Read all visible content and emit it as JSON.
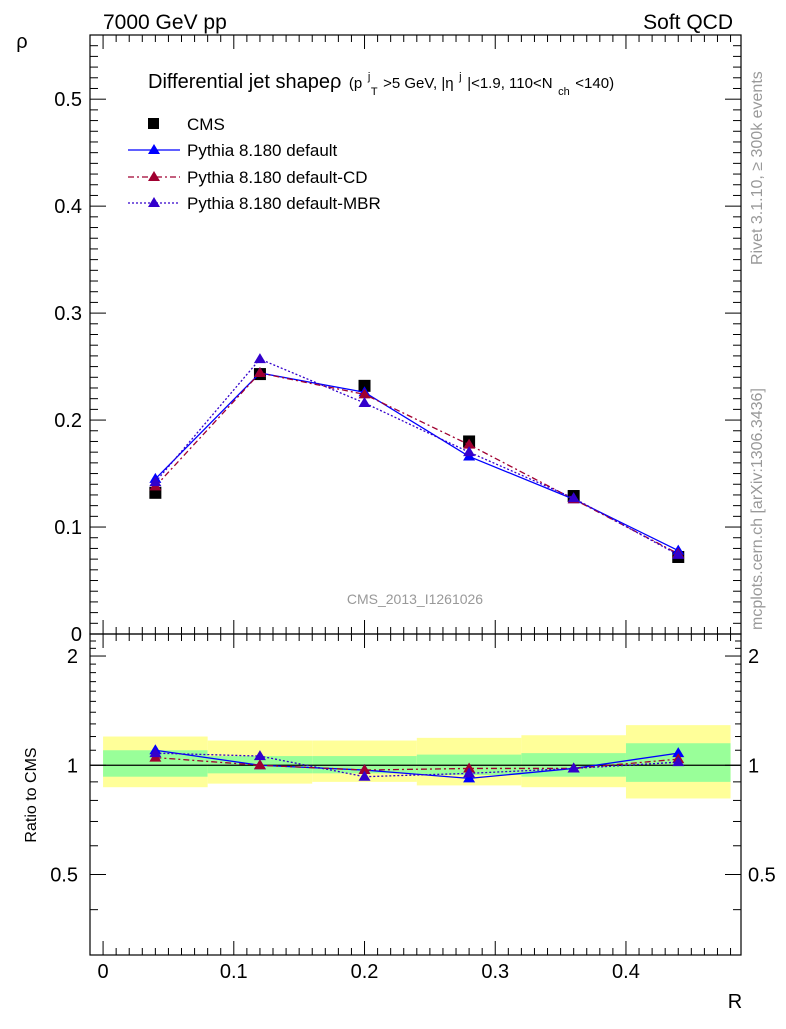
{
  "header": {
    "left": "7000 GeV pp",
    "right": "Soft QCD"
  },
  "side_texts": {
    "rivet": "Rivet 3.1.10, ≥ 300k events",
    "mcplots": "mcplots.cern.ch [arXiv:1306.3436]"
  },
  "plot_title": {
    "main": "Differential jet shapeρ",
    "p": "(p",
    "pt_sup": "j",
    "pt_sub": "T",
    "mid": ">5 GeV, |η",
    "eta_sup": "j",
    "mid2": "|<1.9, 110<N",
    "nch_sub": "ch",
    "end": "<140)"
  },
  "watermark": "CMS_2013_I1261026",
  "legend": [
    {
      "label": "CMS"
    },
    {
      "label": "Pythia 8.180 default"
    },
    {
      "label": "Pythia 8.180 default-CD"
    },
    {
      "label": "Pythia 8.180 default-MBR"
    }
  ],
  "colors": {
    "cms": "#000000",
    "default": "#0000ff",
    "cd": "#a00030",
    "mbr": "#3300cc",
    "band_green": "#99ff99",
    "band_yellow": "#ffff99"
  },
  "chart_data": {
    "type": "scatter",
    "xlabel": "R",
    "ylabel": "ρ",
    "ratio_ylabel": "Ratio to CMS",
    "xlim": [
      -0.01,
      0.488
    ],
    "ylim": [
      0,
      0.56
    ],
    "ratio_ylim": [
      0.3,
      2.3
    ],
    "x_ticks": [
      "0",
      "0.1",
      "0.2",
      "0.3",
      "0.4"
    ],
    "y_ticks": [
      "0",
      "0.1",
      "0.2",
      "0.3",
      "0.4",
      "0.5"
    ],
    "ratio_ticks": [
      "0.5",
      "1",
      "2"
    ],
    "x": [
      0.04,
      0.12,
      0.2,
      0.28,
      0.36,
      0.44
    ],
    "series": [
      {
        "name": "CMS",
        "values": [
          0.132,
          0.243,
          0.232,
          0.18,
          0.129,
          0.072
        ]
      },
      {
        "name": "Pythia 8.180 default",
        "values": [
          0.145,
          0.244,
          0.226,
          0.166,
          0.126,
          0.078
        ]
      },
      {
        "name": "Pythia 8.180 default-CD",
        "values": [
          0.138,
          0.244,
          0.224,
          0.177,
          0.126,
          0.075
        ]
      },
      {
        "name": "Pythia 8.180 default-MBR",
        "values": [
          0.142,
          0.257,
          0.216,
          0.17,
          0.127,
          0.074
        ]
      }
    ],
    "ratio_series": [
      {
        "name": "Pythia 8.180 default",
        "values": [
          1.1,
          1.0,
          0.97,
          0.92,
          0.98,
          1.08
        ]
      },
      {
        "name": "Pythia 8.180 default-CD",
        "values": [
          1.05,
          1.0,
          0.97,
          0.98,
          0.98,
          1.04
        ]
      },
      {
        "name": "Pythia 8.180 default-MBR",
        "values": [
          1.08,
          1.06,
          0.93,
          0.95,
          0.98,
          1.02
        ]
      }
    ],
    "bands": [
      {
        "xmin": 0.0,
        "xmax": 0.08,
        "green": [
          0.93,
          1.1
        ],
        "yellow": [
          0.87,
          1.2
        ]
      },
      {
        "xmin": 0.08,
        "xmax": 0.16,
        "green": [
          0.95,
          1.06
        ],
        "yellow": [
          0.89,
          1.17
        ]
      },
      {
        "xmin": 0.16,
        "xmax": 0.24,
        "green": [
          0.95,
          1.06
        ],
        "yellow": [
          0.9,
          1.17
        ]
      },
      {
        "xmin": 0.24,
        "xmax": 0.32,
        "green": [
          0.94,
          1.07
        ],
        "yellow": [
          0.88,
          1.19
        ]
      },
      {
        "xmin": 0.32,
        "xmax": 0.4,
        "green": [
          0.93,
          1.08
        ],
        "yellow": [
          0.87,
          1.21
        ]
      },
      {
        "xmin": 0.4,
        "xmax": 0.48,
        "green": [
          0.9,
          1.15
        ],
        "yellow": [
          0.81,
          1.29
        ]
      }
    ]
  }
}
